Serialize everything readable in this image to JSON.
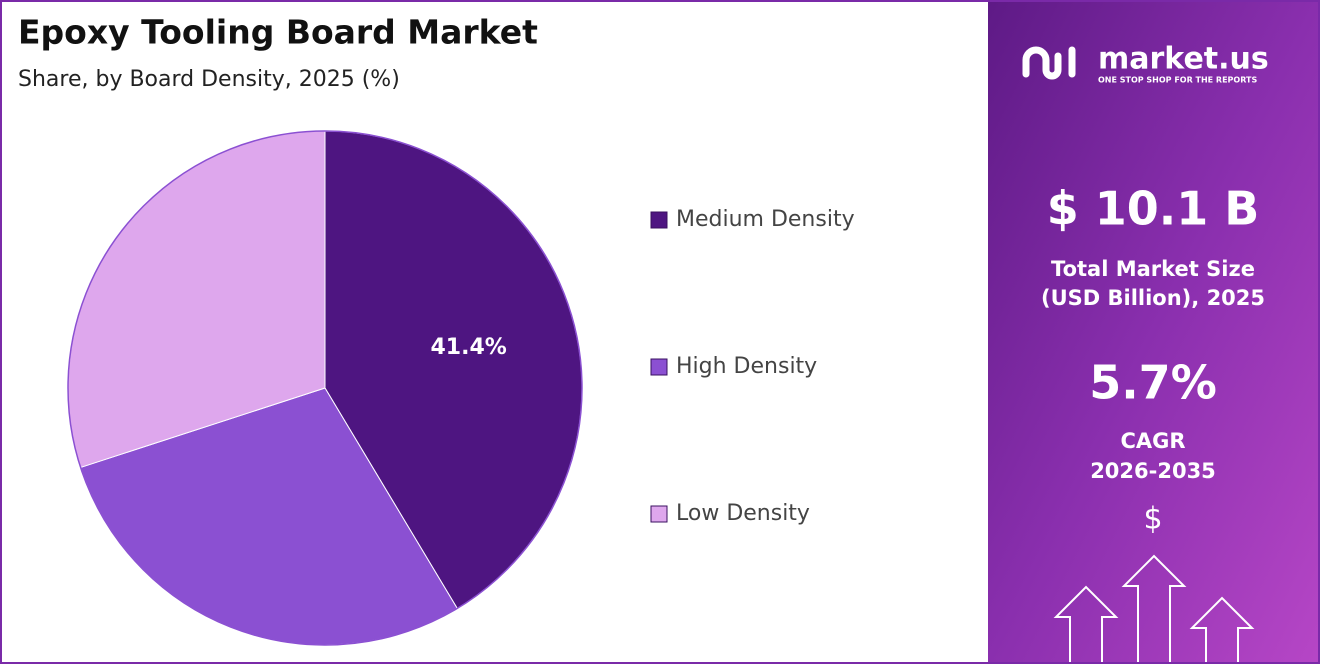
{
  "chart_data": {
    "type": "pie",
    "title": "Epoxy Tooling Board Market",
    "subtitle": "Share, by Board Density, 2025 (%)",
    "categories": [
      "Medium Density",
      "High Density",
      "Low Density"
    ],
    "values": [
      41.4,
      28.6,
      30.0
    ],
    "value_labels": [
      "41.4%",
      null,
      null
    ],
    "colors": [
      "#4e1581",
      "#8b50d2",
      "#dea7ed"
    ],
    "start_angle": 0,
    "direction": "clockwise",
    "legend": "right"
  },
  "panel": {
    "brand": "market.us",
    "tagline": "ONE STOP SHOP FOR THE REPORTS",
    "market_size": "$ 10.1 B",
    "market_size_label_1": "Total Market Size",
    "market_size_label_2": "(USD Billion), 2025",
    "cagr": "5.7%",
    "cagr_label": "CAGR",
    "cagr_period": "2026-2035",
    "currency_icon": "$"
  }
}
